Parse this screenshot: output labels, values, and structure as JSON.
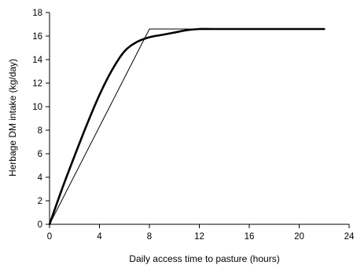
{
  "chart_data": {
    "type": "line",
    "title": "",
    "xlabel": "Daily access time to pasture (hours)",
    "ylabel": "Herbage DM intake (kg/day)",
    "xlim": [
      0,
      24
    ],
    "ylim": [
      0,
      18
    ],
    "xticks": [
      0,
      4,
      8,
      12,
      16,
      20,
      24
    ],
    "yticks": [
      0,
      2,
      4,
      6,
      8,
      10,
      12,
      14,
      16,
      18
    ],
    "grid": false,
    "legend": "none",
    "series": [
      {
        "style": "thick",
        "color": "#000000",
        "x": [
          0,
          1,
          2,
          3,
          4,
          5,
          6,
          7,
          8,
          9,
          10,
          11,
          12,
          13,
          14,
          16,
          18,
          20,
          22
        ],
        "y": [
          0,
          3.0,
          5.8,
          8.5,
          11.0,
          13.1,
          14.7,
          15.5,
          15.9,
          16.1,
          16.3,
          16.5,
          16.6,
          16.6,
          16.6,
          16.6,
          16.6,
          16.6,
          16.6
        ]
      },
      {
        "style": "thin",
        "color": "#000000",
        "x": [
          0,
          8,
          22
        ],
        "y": [
          0,
          16.6,
          16.6
        ]
      }
    ]
  }
}
